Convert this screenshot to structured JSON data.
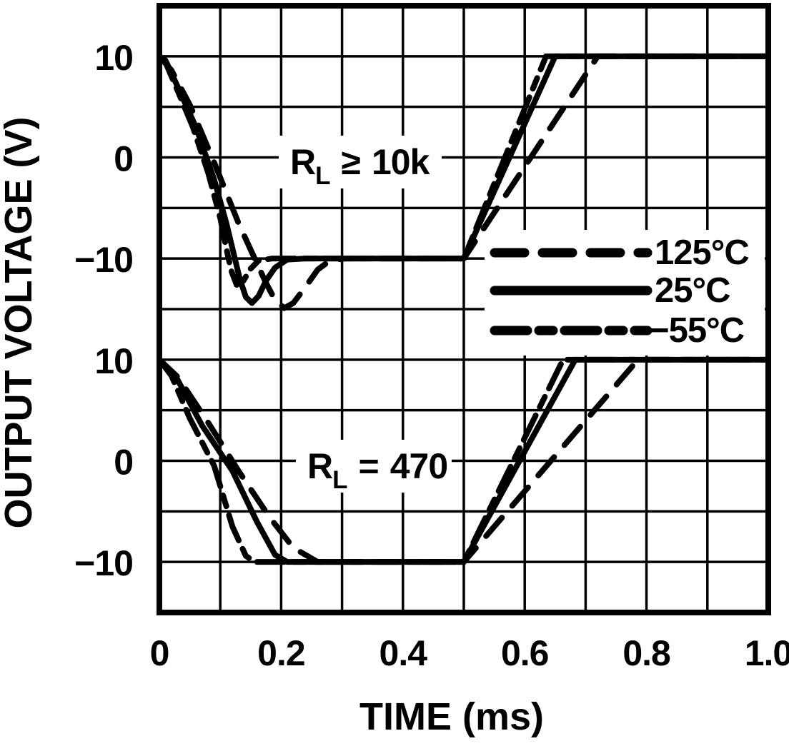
{
  "chart_data": {
    "type": "line",
    "title": "",
    "xlabel": "TIME (ms)",
    "ylabel": "OUTPUT VOLTAGE (V)",
    "x_range": [
      0,
      1.0
    ],
    "x_tick_values": [
      0,
      0.2,
      0.4,
      0.6,
      0.8,
      1.0
    ],
    "x_tick_labels": [
      "0",
      "0.2",
      "0.4",
      "0.6",
      "0.8",
      "1.0"
    ],
    "x_grid_step_ms": 0.1,
    "grid": {
      "columns": 10,
      "rows": 12,
      "grid_on": true
    },
    "legend": {
      "position": "right-middle-overlay",
      "entries": [
        {
          "label": "125°C",
          "line_style": "dashed"
        },
        {
          "label": "25°C",
          "line_style": "solid"
        },
        {
          "label": "−55°C",
          "line_style": "dash-dot"
        }
      ]
    },
    "panels": [
      {
        "annotation": {
          "symbol": "R",
          "subscript": "L",
          "operator": "≥",
          "value": "10k"
        },
        "y_range": [
          15,
          -15
        ],
        "y_tick_values": [
          10,
          0,
          -10
        ],
        "y_tick_labels": [
          "10",
          "0",
          "−10"
        ],
        "series": [
          {
            "name": "125°C",
            "style": "dashed",
            "points": [
              [
                0,
                10
              ],
              [
                0.02,
                8.6
              ],
              [
                0.05,
                5.2
              ],
              [
                0.09,
                -0.5
              ],
              [
                0.13,
                -6.5
              ],
              [
                0.155,
                -9.8
              ],
              [
                0.175,
                -12.4
              ],
              [
                0.19,
                -14.1
              ],
              [
                0.205,
                -14.9
              ],
              [
                0.22,
                -14.4
              ],
              [
                0.24,
                -12.8
              ],
              [
                0.26,
                -11.1
              ],
              [
                0.28,
                -10.2
              ],
              [
                0.305,
                -10
              ],
              [
                0.5,
                -10
              ],
              [
                0.72,
                10
              ],
              [
                1,
                10
              ]
            ]
          },
          {
            "name": "−55°C",
            "style": "dash-dot",
            "points": [
              [
                0,
                10
              ],
              [
                0.01,
                9.4
              ],
              [
                0.03,
                6.6
              ],
              [
                0.055,
                3
              ],
              [
                0.08,
                -1.5
              ],
              [
                0.1,
                -6
              ],
              [
                0.11,
                -9
              ],
              [
                0.118,
                -11.2
              ],
              [
                0.127,
                -12.6
              ],
              [
                0.138,
                -12.2
              ],
              [
                0.15,
                -11
              ],
              [
                0.163,
                -10.2
              ],
              [
                0.185,
                -10
              ],
              [
                0.5,
                -10
              ],
              [
                0.635,
                10
              ],
              [
                1,
                10
              ]
            ]
          },
          {
            "name": "25°C",
            "style": "solid",
            "points": [
              [
                0,
                10
              ],
              [
                0.01,
                9.6
              ],
              [
                0.03,
                7
              ],
              [
                0.06,
                3
              ],
              [
                0.09,
                -2.2
              ],
              [
                0.11,
                -6.5
              ],
              [
                0.122,
                -9.5
              ],
              [
                0.132,
                -12
              ],
              [
                0.142,
                -13.8
              ],
              [
                0.152,
                -14.4
              ],
              [
                0.163,
                -13.7
              ],
              [
                0.175,
                -12.2
              ],
              [
                0.19,
                -10.9
              ],
              [
                0.21,
                -10.1
              ],
              [
                0.24,
                -10
              ],
              [
                0.5,
                -10
              ],
              [
                0.65,
                10
              ],
              [
                1,
                10
              ]
            ]
          }
        ]
      },
      {
        "annotation": {
          "symbol": "R",
          "subscript": "L",
          "operator": "=",
          "value": "470"
        },
        "y_range": [
          15,
          -15
        ],
        "y_tick_values": [
          10,
          0,
          -10
        ],
        "y_tick_labels": [
          "10",
          "0",
          "−10"
        ],
        "series": [
          {
            "name": "125°C",
            "style": "dashed",
            "points": [
              [
                0,
                10
              ],
              [
                0.03,
                8.3
              ],
              [
                0.08,
                3.8
              ],
              [
                0.13,
                -1
              ],
              [
                0.18,
                -5.5
              ],
              [
                0.22,
                -8.6
              ],
              [
                0.26,
                -10
              ],
              [
                0.5,
                -10
              ],
              [
                0.786,
                10
              ],
              [
                1,
                10
              ]
            ]
          },
          {
            "name": "−55°C",
            "style": "dash-dot",
            "points": [
              [
                0,
                10
              ],
              [
                0.02,
                8.4
              ],
              [
                0.05,
                4.2
              ],
              [
                0.09,
                -0.5
              ],
              [
                0.12,
                -6.5
              ],
              [
                0.142,
                -9.4
              ],
              [
                0.157,
                -10
              ],
              [
                0.5,
                -10
              ],
              [
                0.663,
                10
              ],
              [
                1,
                10
              ]
            ]
          },
          {
            "name": "25°C",
            "style": "solid",
            "points": [
              [
                0,
                10
              ],
              [
                0.03,
                8
              ],
              [
                0.07,
                3.5
              ],
              [
                0.12,
                -1
              ],
              [
                0.16,
                -6
              ],
              [
                0.19,
                -9.3
              ],
              [
                0.21,
                -10
              ],
              [
                0.5,
                -10
              ],
              [
                0.683,
                10
              ],
              [
                1,
                10
              ]
            ]
          }
        ]
      }
    ]
  }
}
